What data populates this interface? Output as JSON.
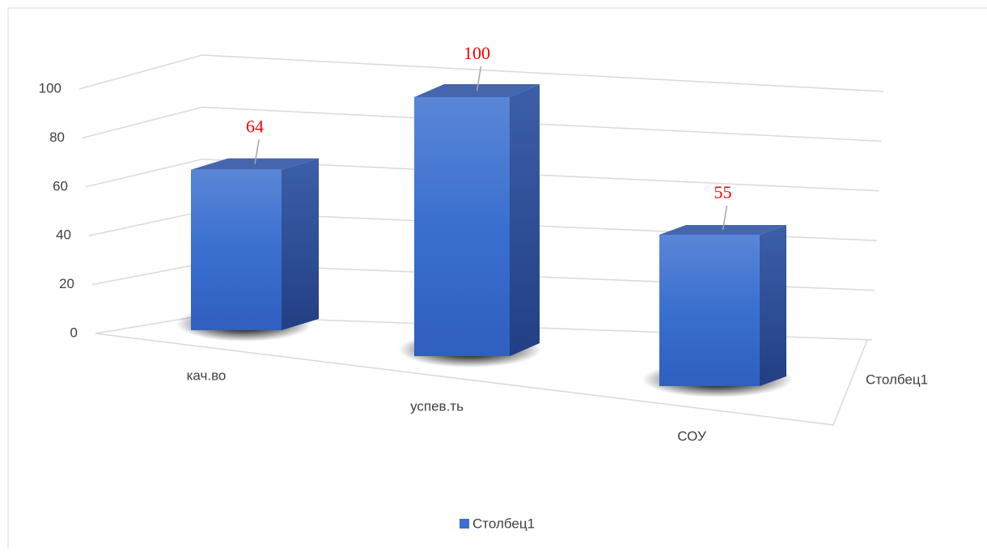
{
  "chart_data": {
    "type": "bar3d",
    "categories": [
      "кач.во",
      "успев.ть",
      "СОУ"
    ],
    "series": [
      {
        "name": "Столбец1",
        "color": "#3a6fd0",
        "values": [
          64,
          100,
          55
        ]
      }
    ],
    "ylim": [
      0,
      100
    ],
    "yticks": [
      0,
      20,
      40,
      60,
      80,
      100
    ],
    "grid": true,
    "legend": "bottom",
    "value_label_color": "#ff0000"
  }
}
